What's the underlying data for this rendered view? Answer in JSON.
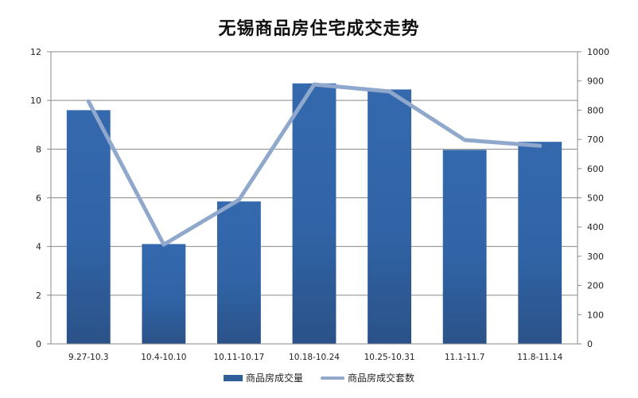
{
  "chart_data": {
    "type": "bar+line",
    "title": "无锡商品房住宅成交走势",
    "categories": [
      "9.27-10.3",
      "10.4-10.10",
      "10.11-10.17",
      "10.18-10.24",
      "10.25-10.31",
      "11.1-11.7",
      "11.8-11.14"
    ],
    "series": [
      {
        "name": "商品房成交量",
        "type": "bar",
        "axis": "left",
        "color": "#2f62a4",
        "values": [
          9.6,
          4.1,
          5.85,
          10.7,
          10.45,
          7.97,
          8.3
        ]
      },
      {
        "name": "商品房成交套数",
        "type": "line",
        "axis": "right",
        "color": "#8fa8cc",
        "values": [
          830,
          340,
          493,
          888,
          864,
          698,
          678
        ]
      }
    ],
    "left_axis": {
      "min": 0,
      "max": 12,
      "ticks": [
        "0",
        "2",
        "4",
        "6",
        "8",
        "10",
        "12"
      ]
    },
    "right_axis": {
      "min": 0,
      "max": 1000,
      "ticks": [
        "0",
        "100",
        "200",
        "300",
        "400",
        "500",
        "600",
        "700",
        "800",
        "900",
        "1000"
      ]
    },
    "xlabel": "",
    "ylabel": "",
    "grid": true,
    "legend_position": "bottom"
  },
  "legend": {
    "bar_label": "商品房成交量",
    "line_label": "商品房成交套数"
  }
}
